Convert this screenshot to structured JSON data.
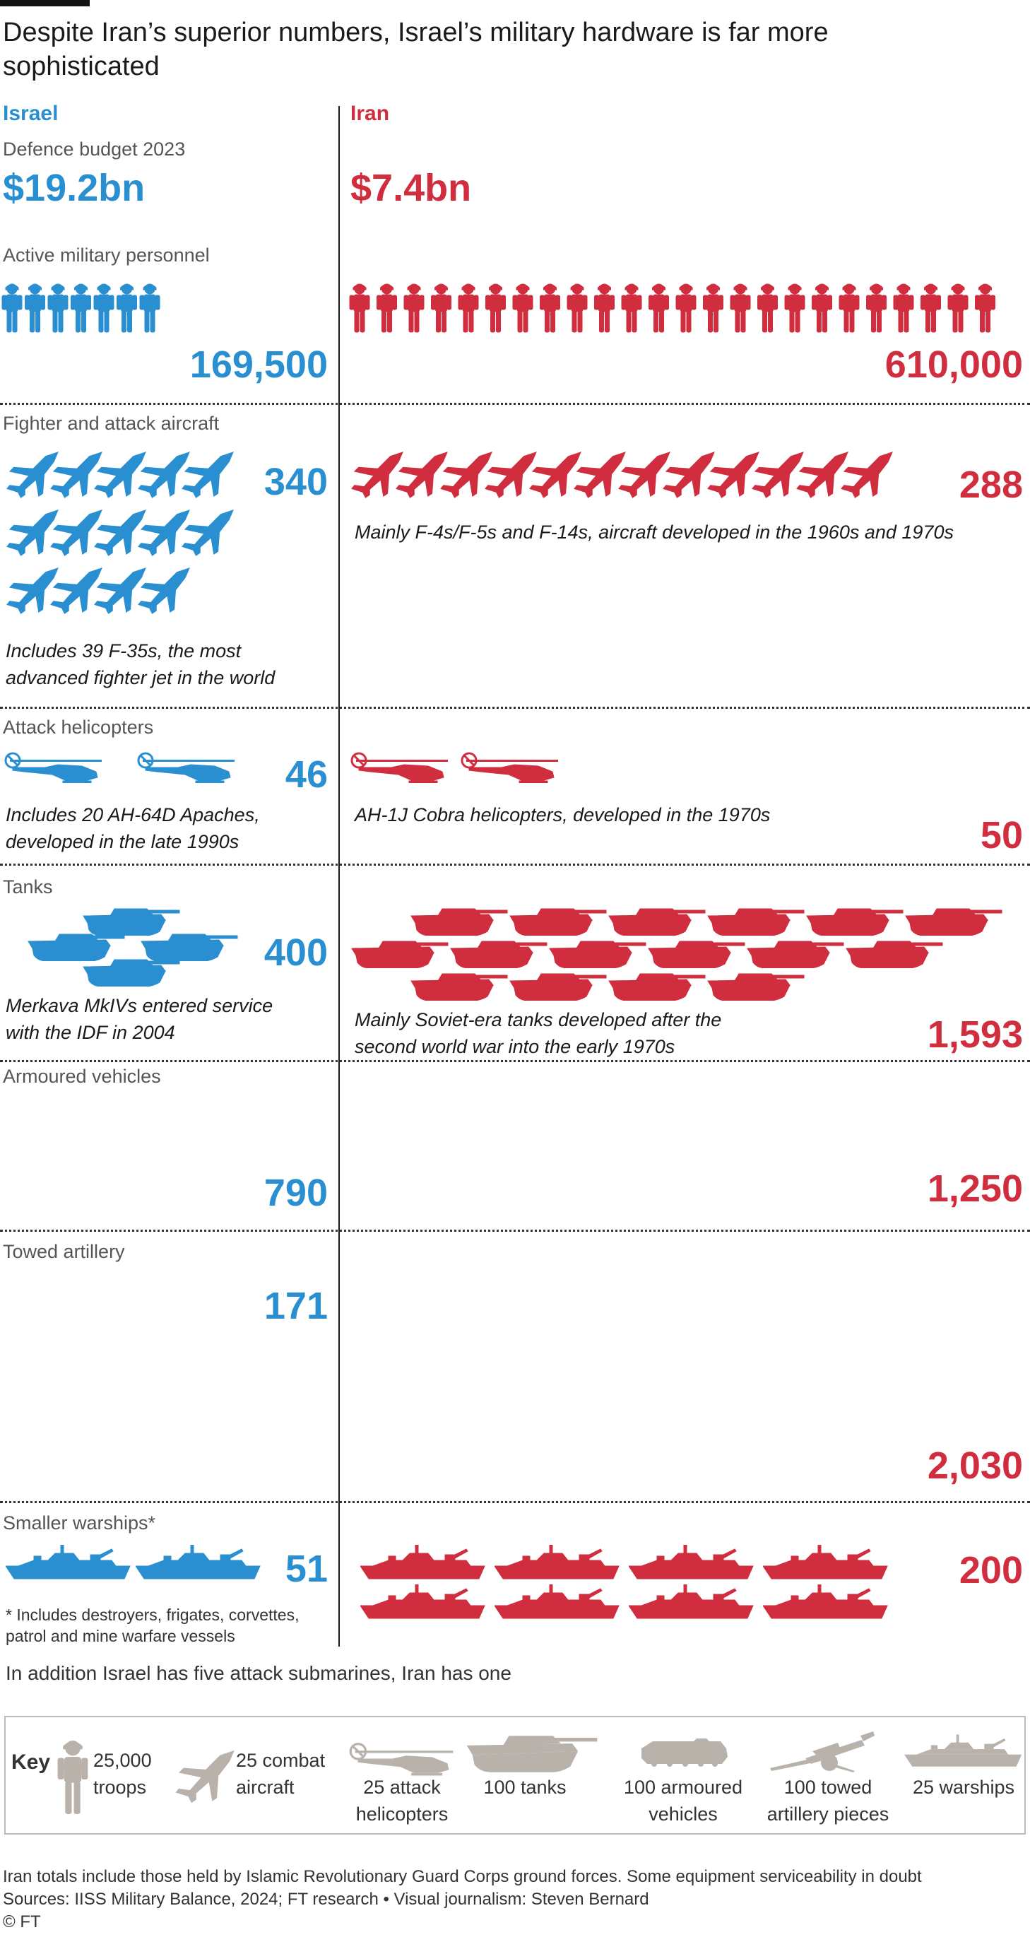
{
  "title": "Despite Iran’s superior numbers, Israel’s military hardware is far more sophisticated",
  "colors": {
    "israel": "#2a8fd0",
    "iran": "#d02e3e",
    "key": "#b9b2ab"
  },
  "israel_label": "Israel",
  "iran_label": "Iran",
  "budget": {
    "label": "Defence budget 2023",
    "israel": "$19.2bn",
    "iran": "$7.4bn"
  },
  "personnel": {
    "label": "Active military personnel",
    "israel": "169,500",
    "iran": "610,000"
  },
  "aircraft": {
    "label": "Fighter and attack aircraft",
    "israel": "340",
    "iran": "288",
    "israel_note": "Includes 39 F-35s, the most advanced fighter jet in the world",
    "iran_note": "Mainly F-4s/F-5s and F-14s, aircraft developed in the 1960s and 1970s"
  },
  "helicopters": {
    "label": "Attack helicopters",
    "israel": "46",
    "iran": "50",
    "israel_note": "Includes 20 AH-64D Apaches, developed in the late 1990s",
    "iran_note": "AH-1J Cobra helicopters, developed in the 1970s"
  },
  "tanks": {
    "label": "Tanks",
    "israel": "400",
    "iran": "1,593",
    "israel_note": "Merkava MkIVs entered service with the IDF in 2004",
    "iran_note": "Mainly Soviet-era tanks developed after the second world war into the early 1970s"
  },
  "armoured": {
    "label": "Armoured vehicles",
    "israel": "790",
    "iran": "1,250"
  },
  "artillery": {
    "label": "Towed artillery",
    "israel": "171",
    "iran": "2,030"
  },
  "warships": {
    "label": "Smaller warships*",
    "israel": "51",
    "iran": "200",
    "note": "* Includes destroyers, frigates, corvettes, patrol and mine warfare vessels"
  },
  "extra_note": "In addition Israel has five attack submarines, Iran has one",
  "key": {
    "title": "Key",
    "troops": "25,000 troops",
    "aircraft": "25 combat aircraft",
    "helicopters": "25 attack helicopters",
    "tanks": "100 tanks",
    "armoured": "100 armoured vehicles",
    "artillery": "100 towed artillery pieces",
    "warships": "25 warships"
  },
  "footnote": "Iran totals include those held by Islamic Revolutionary Guard Corps ground forces. Some equipment serviceability in doubt",
  "sources": "Sources:  IISS Military Balance, 2024; FT research • Visual journalism: Steven Bernard",
  "credit": "© FT",
  "chart_data": {
    "type": "table",
    "title": "Despite Iran’s superior numbers, Israel’s military hardware is far more sophisticated",
    "categories": [
      "Defence budget 2023",
      "Active military personnel",
      "Fighter and attack aircraft",
      "Attack helicopters",
      "Tanks",
      "Armoured vehicles",
      "Towed artillery",
      "Smaller warships*"
    ],
    "series": [
      {
        "name": "Israel",
        "values": [
          "$19.2bn",
          169500,
          340,
          46,
          400,
          790,
          171,
          51
        ]
      },
      {
        "name": "Iran",
        "values": [
          "$7.4bn",
          610000,
          288,
          50,
          1593,
          1250,
          2030,
          200
        ]
      }
    ],
    "units_per_icon": {
      "troops": 25000,
      "aircraft": 25,
      "helicopters": 25,
      "tanks": 100,
      "armoured vehicles": 100,
      "towed artillery": 100,
      "warships": 25
    }
  }
}
